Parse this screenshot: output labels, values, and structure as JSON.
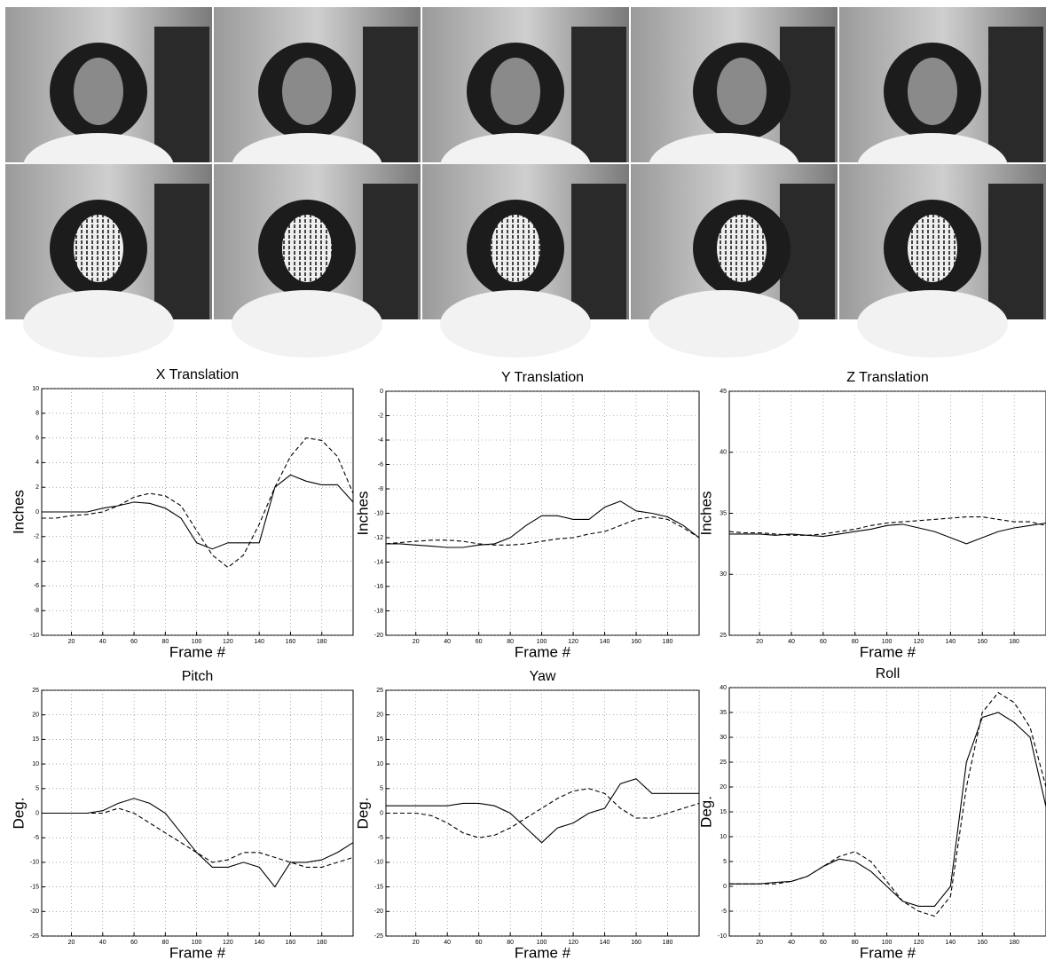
{
  "chart_data": [
    {
      "type": "line",
      "title": "X Translation",
      "xlabel": "Frame #",
      "ylabel": "Inches",
      "x": [
        1,
        10,
        20,
        30,
        40,
        50,
        60,
        70,
        80,
        90,
        100,
        110,
        120,
        130,
        140,
        150,
        160,
        170,
        180,
        190,
        200
      ],
      "xlim": [
        1,
        200
      ],
      "xticks": [
        20,
        40,
        60,
        80,
        100,
        120,
        140,
        160,
        180
      ],
      "ylim": [
        -10,
        10
      ],
      "yticks": [
        -10,
        -8,
        -6,
        -4,
        -2,
        0,
        2,
        4,
        6,
        8,
        10
      ],
      "grid": true,
      "series": [
        {
          "color": "#000000",
          "linestyle": "solid",
          "values": [
            0,
            0,
            0,
            0,
            0.3,
            0.5,
            0.8,
            0.7,
            0.3,
            -0.5,
            -2.5,
            -3,
            -2.5,
            -2.5,
            -2.5,
            2,
            3,
            2.5,
            2.2,
            2.2,
            0.8
          ]
        },
        {
          "color": "#000000",
          "linestyle": "dashed",
          "values": [
            -0.5,
            -0.5,
            -0.3,
            -0.2,
            0,
            0.5,
            1.2,
            1.5,
            1.3,
            0.5,
            -1.5,
            -3.5,
            -4.5,
            -3.5,
            -1,
            2,
            4.5,
            6,
            5.8,
            4.5,
            1.5
          ]
        }
      ]
    },
    {
      "type": "line",
      "title": "Y Translation",
      "xlabel": "Frame #",
      "ylabel": "Inches",
      "x": [
        1,
        10,
        20,
        30,
        40,
        50,
        60,
        70,
        80,
        90,
        100,
        110,
        120,
        130,
        140,
        150,
        160,
        170,
        180,
        190,
        200
      ],
      "xlim": [
        1,
        200
      ],
      "xticks": [
        20,
        40,
        60,
        80,
        100,
        120,
        140,
        160,
        180
      ],
      "ylim": [
        -20,
        0
      ],
      "yticks": [
        -20,
        -18,
        -16,
        -14,
        -12,
        -10,
        -8,
        -6,
        -4,
        -2,
        0
      ],
      "grid": true,
      "series": [
        {
          "color": "#000000",
          "linestyle": "solid",
          "values": [
            -12.5,
            -12.5,
            -12.6,
            -12.7,
            -12.8,
            -12.8,
            -12.6,
            -12.5,
            -12,
            -11,
            -10.2,
            -10.2,
            -10.5,
            -10.5,
            -9.5,
            -9,
            -9.8,
            -10,
            -10.3,
            -11,
            -12
          ]
        },
        {
          "color": "#000000",
          "linestyle": "dashed",
          "values": [
            -12.5,
            -12.4,
            -12.3,
            -12.2,
            -12.2,
            -12.3,
            -12.5,
            -12.6,
            -12.6,
            -12.5,
            -12.3,
            -12.1,
            -12,
            -11.7,
            -11.5,
            -11,
            -10.5,
            -10.3,
            -10.5,
            -11.2,
            -12
          ]
        }
      ]
    },
    {
      "type": "line",
      "title": "Z Translation",
      "xlabel": "Frame #",
      "ylabel": "Inches",
      "x": [
        1,
        10,
        20,
        30,
        40,
        50,
        60,
        70,
        80,
        90,
        100,
        110,
        120,
        130,
        140,
        150,
        160,
        170,
        180,
        190,
        200
      ],
      "xlim": [
        1,
        200
      ],
      "xticks": [
        20,
        40,
        60,
        80,
        100,
        120,
        140,
        160,
        180
      ],
      "ylim": [
        25,
        45
      ],
      "yticks": [
        25,
        30,
        35,
        40,
        45
      ],
      "grid": true,
      "series": [
        {
          "color": "#000000",
          "linestyle": "solid",
          "values": [
            33.3,
            33.3,
            33.3,
            33.2,
            33.3,
            33.2,
            33.1,
            33.3,
            33.5,
            33.7,
            34,
            34.1,
            33.8,
            33.5,
            33,
            32.5,
            33,
            33.5,
            33.8,
            34,
            34.2
          ]
        },
        {
          "color": "#000000",
          "linestyle": "dashed",
          "values": [
            33.5,
            33.4,
            33.4,
            33.3,
            33.2,
            33.2,
            33.3,
            33.5,
            33.7,
            34,
            34.2,
            34.3,
            34.4,
            34.5,
            34.6,
            34.7,
            34.7,
            34.5,
            34.3,
            34.3,
            34
          ]
        }
      ]
    },
    {
      "type": "line",
      "title": "Pitch",
      "xlabel": "Frame #",
      "ylabel": "Deg.",
      "x": [
        1,
        10,
        20,
        30,
        40,
        50,
        60,
        70,
        80,
        90,
        100,
        110,
        120,
        130,
        140,
        150,
        160,
        170,
        180,
        190,
        200
      ],
      "xlim": [
        1,
        200
      ],
      "xticks": [
        20,
        40,
        60,
        80,
        100,
        120,
        140,
        160,
        180
      ],
      "ylim": [
        -25,
        25
      ],
      "yticks": [
        -25,
        -20,
        -15,
        -10,
        -5,
        0,
        5,
        10,
        15,
        20,
        25
      ],
      "grid": true,
      "series": [
        {
          "color": "#000000",
          "linestyle": "solid",
          "values": [
            0,
            0,
            0,
            0,
            0.5,
            2,
            3,
            2,
            0,
            -4,
            -8,
            -11,
            -11,
            -10,
            -11,
            -15,
            -10,
            -10,
            -9.5,
            -8,
            -6
          ]
        },
        {
          "color": "#000000",
          "linestyle": "dashed",
          "values": [
            0,
            0,
            0,
            0,
            0,
            1,
            0,
            -2,
            -4,
            -6,
            -8,
            -10,
            -9.5,
            -8,
            -8,
            -9,
            -10,
            -11,
            -11,
            -10,
            -9
          ]
        }
      ]
    },
    {
      "type": "line",
      "title": "Yaw",
      "xlabel": "Frame #",
      "ylabel": "Deg.",
      "x": [
        1,
        10,
        20,
        30,
        40,
        50,
        60,
        70,
        80,
        90,
        100,
        110,
        120,
        130,
        140,
        150,
        160,
        170,
        180,
        190,
        200
      ],
      "xlim": [
        1,
        200
      ],
      "xticks": [
        20,
        40,
        60,
        80,
        100,
        120,
        140,
        160,
        180
      ],
      "ylim": [
        -25,
        25
      ],
      "yticks": [
        -25,
        -20,
        -15,
        -10,
        -5,
        0,
        5,
        10,
        15,
        20,
        25
      ],
      "grid": true,
      "series": [
        {
          "color": "#000000",
          "linestyle": "solid",
          "values": [
            1.5,
            1.5,
            1.5,
            1.5,
            1.5,
            2,
            2,
            1.5,
            0,
            -3,
            -6,
            -3,
            -2,
            0,
            1,
            6,
            7,
            4,
            4,
            4,
            4
          ]
        },
        {
          "color": "#000000",
          "linestyle": "dashed",
          "values": [
            0,
            0,
            0,
            -0.5,
            -2,
            -4,
            -5,
            -4.5,
            -3,
            -1,
            1,
            3,
            4.5,
            5,
            4,
            1,
            -1,
            -1,
            0,
            1,
            2
          ]
        }
      ]
    },
    {
      "type": "line",
      "title": "Roll",
      "xlabel": "Frame #",
      "ylabel": "Deg.",
      "x": [
        1,
        10,
        20,
        30,
        40,
        50,
        60,
        70,
        80,
        90,
        100,
        110,
        120,
        130,
        140,
        150,
        160,
        170,
        180,
        190,
        200
      ],
      "xlim": [
        1,
        200
      ],
      "xticks": [
        20,
        40,
        60,
        80,
        100,
        120,
        140,
        160,
        180
      ],
      "ylim": [
        -10,
        40
      ],
      "yticks": [
        -10,
        -5,
        0,
        5,
        10,
        15,
        20,
        25,
        30,
        35,
        40
      ],
      "grid": true,
      "series": [
        {
          "color": "#000000",
          "linestyle": "solid",
          "values": [
            0.5,
            0.5,
            0.5,
            0.8,
            1,
            2,
            4,
            5.5,
            5,
            3,
            0,
            -3,
            -4,
            -4,
            0,
            25,
            34,
            35,
            33,
            30,
            16
          ]
        },
        {
          "color": "#000000",
          "linestyle": "dashed",
          "values": [
            0.5,
            0.5,
            0.5,
            0.5,
            1,
            2,
            4,
            6,
            7,
            5,
            1,
            -3,
            -5,
            -6,
            -2,
            20,
            35,
            39,
            37,
            32,
            20
          ]
        }
      ]
    }
  ]
}
